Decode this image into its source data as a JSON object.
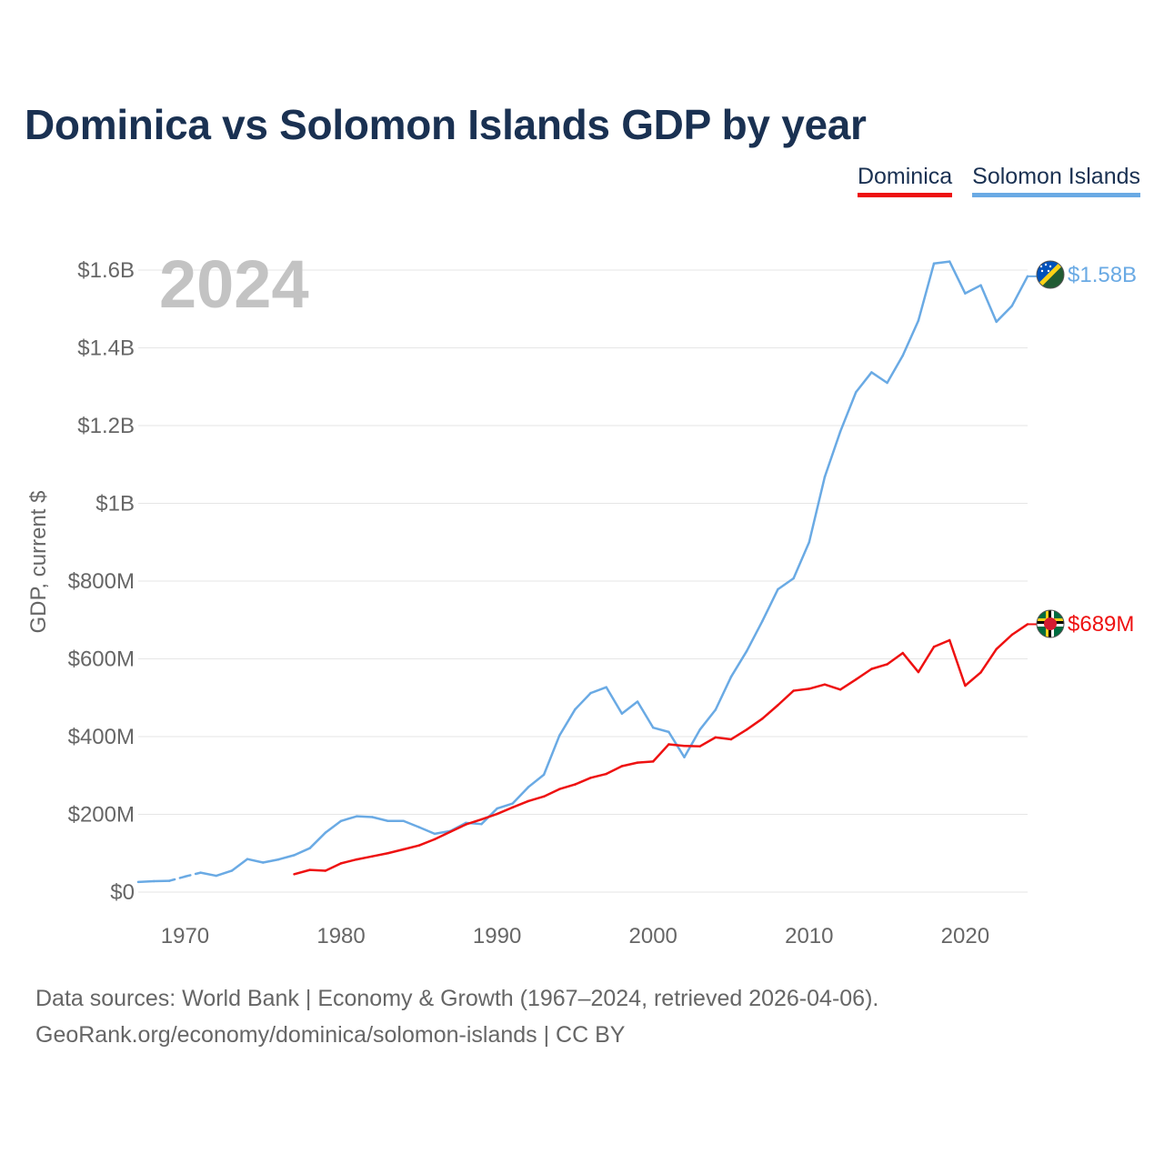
{
  "title": "Dominica vs Solomon Islands GDP by year",
  "legend": {
    "dominica": "Dominica",
    "solomon": "Solomon Islands"
  },
  "colors": {
    "dominica": "#ee1111",
    "solomon": "#6aaae4",
    "title": "#1a3152"
  },
  "footer": {
    "line1": "Data sources: World Bank | Economy & Growth (1967–2024, retrieved 2026-04-06).",
    "line2": "GeoRank.org/economy/dominica/solomon-islands | CC BY"
  },
  "chart_data": {
    "type": "line",
    "year_label": "2024",
    "ylabel": "GDP, current $",
    "xlim": [
      1967,
      2024
    ],
    "ylim": [
      0,
      1600000000
    ],
    "x_ticks": [
      1970,
      1980,
      1990,
      2000,
      2010,
      2020
    ],
    "y_ticks": [
      {
        "value": 0,
        "label": "$0"
      },
      {
        "value": 200000000,
        "label": "$200M"
      },
      {
        "value": 400000000,
        "label": "$400M"
      },
      {
        "value": 600000000,
        "label": "$600M"
      },
      {
        "value": 800000000,
        "label": "$800M"
      },
      {
        "value": 1000000000,
        "label": "$1B"
      },
      {
        "value": 1200000000,
        "label": "$1.2B"
      },
      {
        "value": 1400000000,
        "label": "$1.4B"
      },
      {
        "value": 1600000000,
        "label": "$1.6B"
      }
    ],
    "series": [
      {
        "name": "Solomon Islands",
        "key": "solomon",
        "color": "#6aaae4",
        "end_label": "$1.58B",
        "flag": "solomon-islands-flag",
        "gap_years": [
          1970
        ],
        "points": [
          [
            1967,
            26000000
          ],
          [
            1968,
            28000000
          ],
          [
            1969,
            29000000
          ],
          [
            1970,
            40000000
          ],
          [
            1971,
            50000000
          ],
          [
            1972,
            42000000
          ],
          [
            1973,
            55000000
          ],
          [
            1974,
            85000000
          ],
          [
            1975,
            76000000
          ],
          [
            1976,
            84000000
          ],
          [
            1977,
            95000000
          ],
          [
            1978,
            113000000
          ],
          [
            1979,
            153000000
          ],
          [
            1980,
            183000000
          ],
          [
            1981,
            195000000
          ],
          [
            1982,
            193000000
          ],
          [
            1983,
            183000000
          ],
          [
            1984,
            183000000
          ],
          [
            1985,
            167000000
          ],
          [
            1986,
            150000000
          ],
          [
            1987,
            157000000
          ],
          [
            1988,
            178000000
          ],
          [
            1989,
            175000000
          ],
          [
            1990,
            215000000
          ],
          [
            1991,
            228000000
          ],
          [
            1992,
            270000000
          ],
          [
            1993,
            302000000
          ],
          [
            1994,
            403000000
          ],
          [
            1995,
            470000000
          ],
          [
            1996,
            512000000
          ],
          [
            1997,
            527000000
          ],
          [
            1998,
            459000000
          ],
          [
            1999,
            490000000
          ],
          [
            2000,
            423000000
          ],
          [
            2001,
            412000000
          ],
          [
            2002,
            347000000
          ],
          [
            2003,
            418000000
          ],
          [
            2004,
            469000000
          ],
          [
            2005,
            554000000
          ],
          [
            2006,
            620000000
          ],
          [
            2007,
            697000000
          ],
          [
            2008,
            779000000
          ],
          [
            2009,
            807000000
          ],
          [
            2010,
            900000000
          ],
          [
            2011,
            1068000000
          ],
          [
            2012,
            1185000000
          ],
          [
            2013,
            1286000000
          ],
          [
            2014,
            1337000000
          ],
          [
            2015,
            1310000000
          ],
          [
            2016,
            1380000000
          ],
          [
            2017,
            1470000000
          ],
          [
            2018,
            1617000000
          ],
          [
            2019,
            1622000000
          ],
          [
            2020,
            1540000000
          ],
          [
            2021,
            1561000000
          ],
          [
            2022,
            1467000000
          ],
          [
            2023,
            1508000000
          ],
          [
            2024,
            1584000000
          ]
        ]
      },
      {
        "name": "Dominica",
        "key": "dominica",
        "color": "#ee1111",
        "end_label": "$689M",
        "flag": "dominica-flag",
        "gap_years": [],
        "points": [
          [
            1977,
            46000000
          ],
          [
            1978,
            57000000
          ],
          [
            1979,
            55000000
          ],
          [
            1980,
            74000000
          ],
          [
            1981,
            84000000
          ],
          [
            1982,
            92000000
          ],
          [
            1983,
            100000000
          ],
          [
            1984,
            110000000
          ],
          [
            1985,
            120000000
          ],
          [
            1986,
            136000000
          ],
          [
            1987,
            155000000
          ],
          [
            1988,
            174000000
          ],
          [
            1989,
            187000000
          ],
          [
            1990,
            201000000
          ],
          [
            1991,
            218000000
          ],
          [
            1992,
            234000000
          ],
          [
            1993,
            246000000
          ],
          [
            1994,
            265000000
          ],
          [
            1995,
            277000000
          ],
          [
            1996,
            294000000
          ],
          [
            1997,
            304000000
          ],
          [
            1998,
            324000000
          ],
          [
            1999,
            333000000
          ],
          [
            2000,
            336000000
          ],
          [
            2001,
            380000000
          ],
          [
            2002,
            376000000
          ],
          [
            2003,
            375000000
          ],
          [
            2004,
            398000000
          ],
          [
            2005,
            393000000
          ],
          [
            2006,
            418000000
          ],
          [
            2007,
            446000000
          ],
          [
            2008,
            481000000
          ],
          [
            2009,
            518000000
          ],
          [
            2010,
            523000000
          ],
          [
            2011,
            534000000
          ],
          [
            2012,
            521000000
          ],
          [
            2013,
            547000000
          ],
          [
            2014,
            574000000
          ],
          [
            2015,
            586000000
          ],
          [
            2016,
            615000000
          ],
          [
            2017,
            566000000
          ],
          [
            2018,
            631000000
          ],
          [
            2019,
            648000000
          ],
          [
            2020,
            531000000
          ],
          [
            2021,
            565000000
          ],
          [
            2022,
            625000000
          ],
          [
            2023,
            662000000
          ],
          [
            2024,
            689000000
          ]
        ]
      }
    ]
  }
}
